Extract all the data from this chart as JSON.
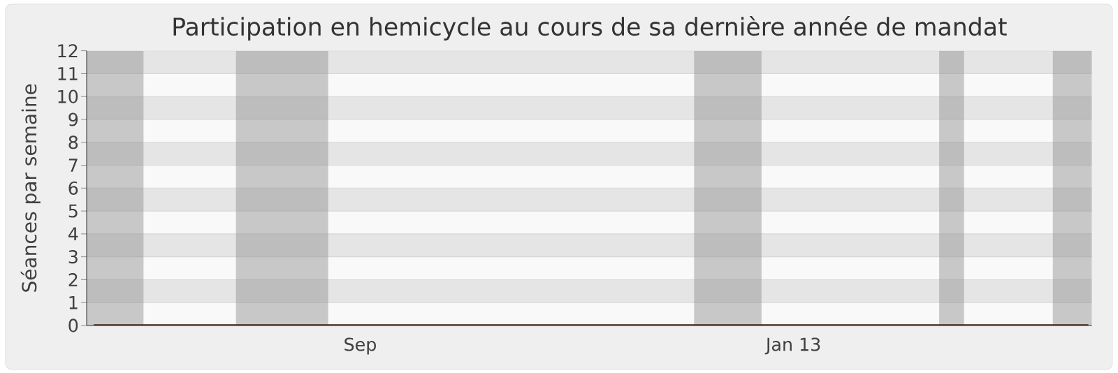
{
  "chart_data": {
    "type": "line",
    "title": "Participation en hemicycle au cours de sa dernière année de mandat",
    "ylabel": "Séances par semaine",
    "x": [
      "2012-06-18",
      "2012-06-25",
      "2012-07-02",
      "2012-07-09",
      "2012-07-16",
      "2012-07-23",
      "2012-07-30",
      "2012-08-06",
      "2012-08-13",
      "2012-08-20",
      "2012-08-27",
      "2012-09-03",
      "2012-09-10",
      "2012-09-17",
      "2012-09-24",
      "2012-10-01",
      "2012-10-08",
      "2012-10-15",
      "2012-10-22",
      "2012-10-29",
      "2012-11-05",
      "2012-11-12",
      "2012-11-19",
      "2012-11-26",
      "2012-12-03",
      "2012-12-10",
      "2012-12-17",
      "2012-12-24",
      "2012-12-31",
      "2013-01-07",
      "2013-01-14",
      "2013-01-21",
      "2013-01-28",
      "2013-02-04",
      "2013-02-11",
      "2013-02-18",
      "2013-02-25",
      "2013-03-04",
      "2013-03-11",
      "2013-03-18",
      "2013-03-25"
    ],
    "series": [
      {
        "color": "#3a1c12",
        "values": [
          0,
          0,
          0,
          0,
          0,
          0,
          0,
          0,
          0,
          0,
          0,
          0,
          0,
          0,
          0,
          0,
          0,
          0,
          0,
          0,
          0,
          0,
          0,
          0,
          0,
          0,
          0,
          0,
          0,
          0,
          0,
          0,
          0,
          0,
          0,
          0,
          0,
          0,
          0,
          0,
          0
        ]
      }
    ],
    "xlim": [
      "2012-06-16",
      "2013-03-26"
    ],
    "xticks": [
      {
        "value": "2012-09-01",
        "label": "Sep"
      },
      {
        "value": "2013-01-01",
        "label": "Jan 13"
      }
    ],
    "ylim": [
      0,
      12
    ],
    "yticks": [
      0,
      1,
      2,
      3,
      4,
      5,
      6,
      7,
      8,
      9,
      10,
      11,
      12
    ],
    "grid": "y",
    "marker": "none",
    "line_style": "solid",
    "bands": [
      {
        "axis": "x",
        "from": "2012-06-16",
        "to": "2012-07-02",
        "color": "#8c8c8c"
      },
      {
        "axis": "x",
        "from": "2012-07-28",
        "to": "2012-08-23",
        "color": "#8c8c8c"
      },
      {
        "axis": "x",
        "from": "2012-12-04",
        "to": "2012-12-23",
        "color": "#8c8c8c"
      },
      {
        "axis": "x",
        "from": "2013-02-11",
        "to": "2013-02-18",
        "color": "#8c8c8c"
      },
      {
        "axis": "x",
        "from": "2013-03-15",
        "to": "2013-03-26",
        "color": "#8c8c8c"
      }
    ]
  }
}
